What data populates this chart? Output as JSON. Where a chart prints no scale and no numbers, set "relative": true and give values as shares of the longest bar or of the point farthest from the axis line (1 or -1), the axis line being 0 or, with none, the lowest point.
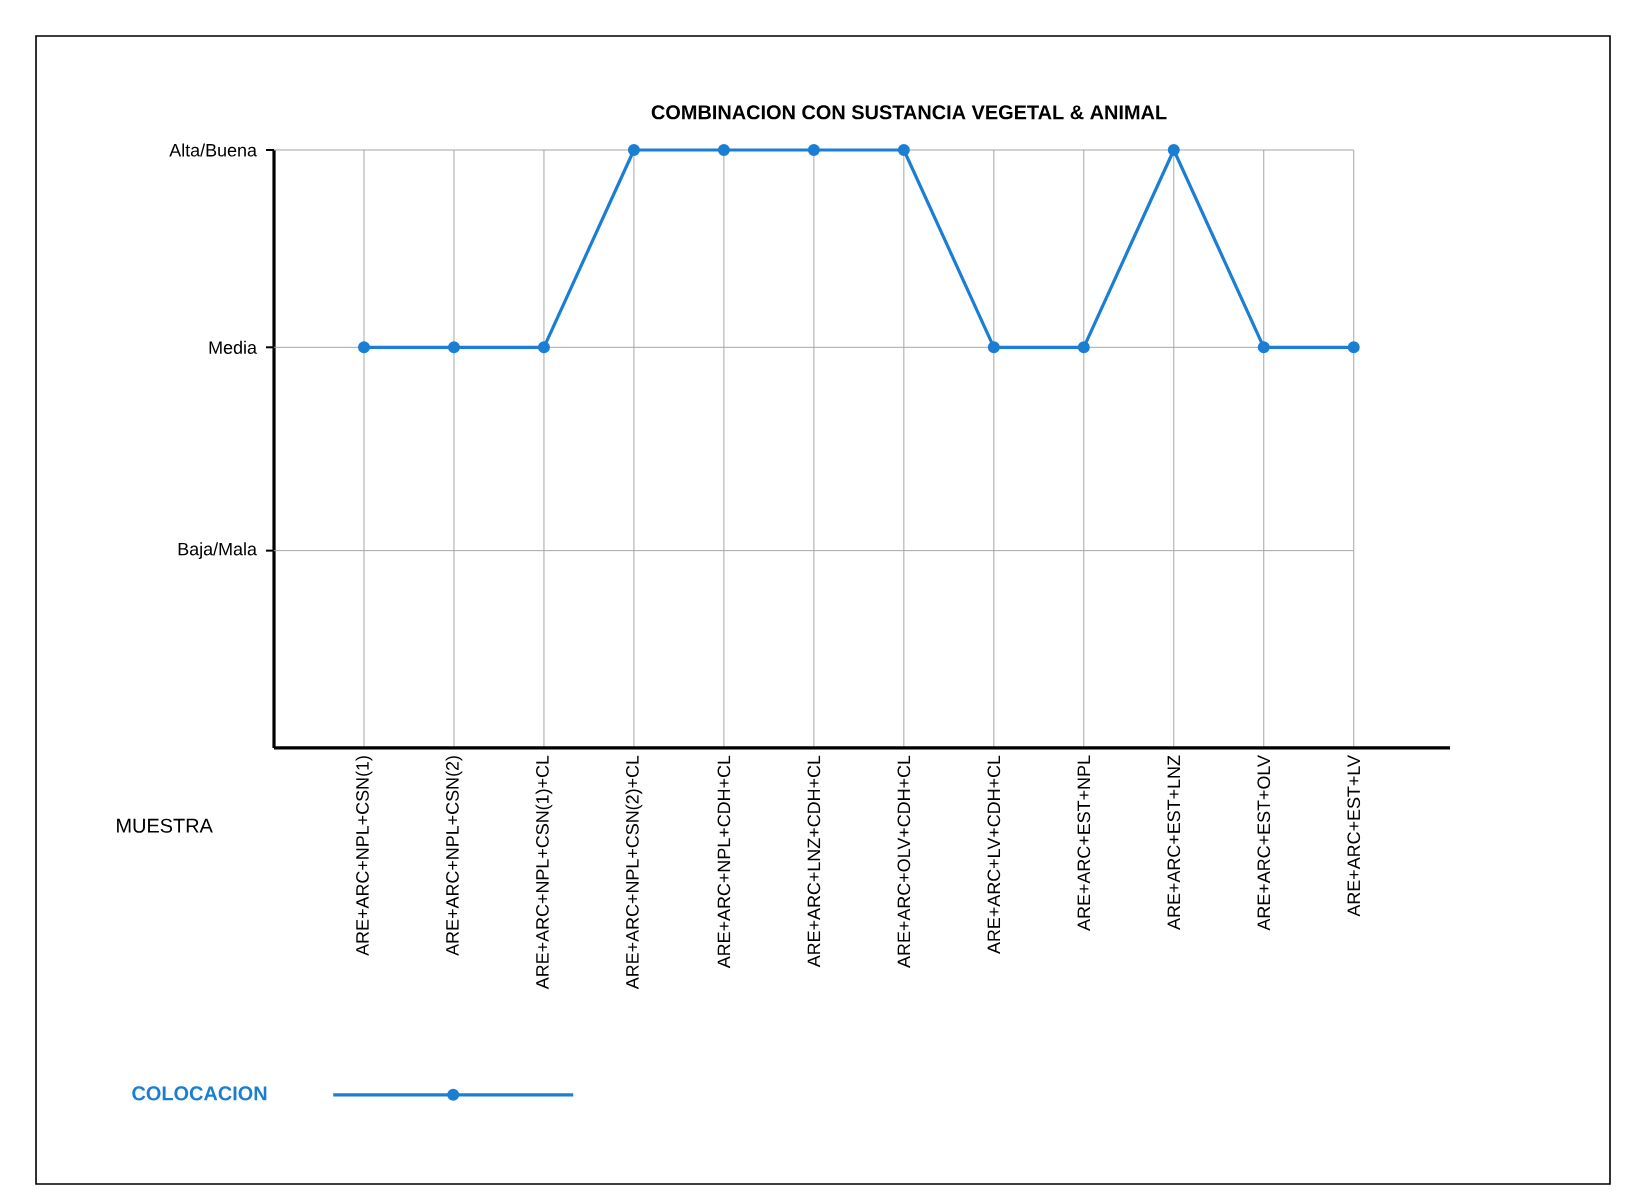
{
  "chart_data": {
    "type": "line",
    "title": "COMBINACION CON SUSTANCIA VEGETAL & ANIMAL",
    "xlabel": "MUESTRA",
    "categories": [
      "ARE+ARC+NPL+CSN(1)",
      "ARE+ARC+NPL+CSN(2)",
      "ARE+ARC+NPL+CSN(1)+CL",
      "ARE+ARC+NPL+CSN(2)+CL",
      "ARE+ARC+NPL+CDH+CL",
      "ARE+ARC+LNZ+CDH+CL",
      "ARE+ARC+OLV+CDH+CL",
      "ARE+ARC+LV+CDH+CL",
      "ARE+ARC+EST+NPL",
      "ARE+ARC+EST+LNZ",
      "ARE+ARC+EST+OLV",
      "ARE+ARC+EST+LV"
    ],
    "series": [
      {
        "name": "COLOCACION",
        "color": "#1a7fd4",
        "values": [
          0.67,
          0.67,
          0.67,
          1,
          1,
          1,
          1,
          0.67,
          0.67,
          1,
          0.67,
          0.67
        ]
      }
    ],
    "relative": true,
    "ref_lines": [
      {
        "axis": "y",
        "value": 0.33,
        "label": "Baja/Mala"
      },
      {
        "axis": "y",
        "value": 0.67,
        "label": "Media"
      },
      {
        "axis": "y",
        "value": 1,
        "label": "Alta/Buena"
      }
    ],
    "grid": "x",
    "legend": "bottom left",
    "marker": "circle",
    "line_style": "solid"
  }
}
